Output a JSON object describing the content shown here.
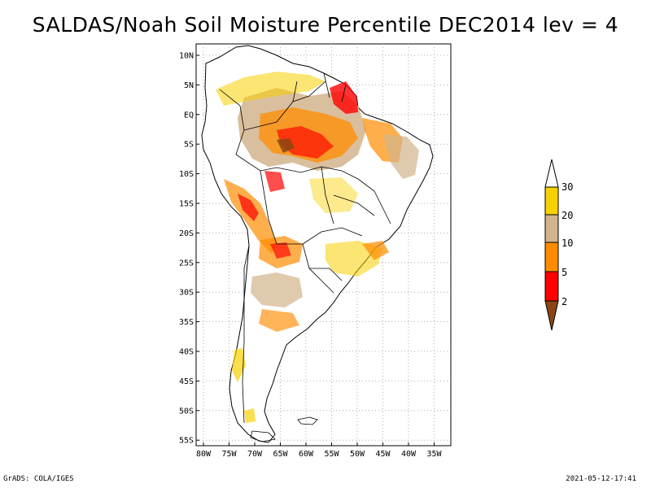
{
  "title": "SALDAS/Noah Soil Moisture Percentile DEC2014 lev = 4",
  "footer_left": "GrADS: COLA/IGES",
  "footer_right": "2021-05-12-17:41",
  "lat_ticks": [
    "10N",
    "5N",
    "EQ",
    "5S",
    "10S",
    "15S",
    "20S",
    "25S",
    "30S",
    "35S",
    "40S",
    "45S",
    "50S",
    "55S"
  ],
  "lon_ticks": [
    "80W",
    "75W",
    "70W",
    "65W",
    "60W",
    "55W",
    "50W",
    "45W",
    "40W",
    "35W"
  ],
  "legend": {
    "labels": [
      "30",
      "20",
      "10",
      "5",
      "2"
    ],
    "colors": {
      "above30": "#ffffff",
      "c20_30": "#f8d000",
      "c10_20": "#d2b48c",
      "c5_10": "#ff8c00",
      "c2_5": "#ff0000",
      "below2": "#8b4513"
    }
  }
}
